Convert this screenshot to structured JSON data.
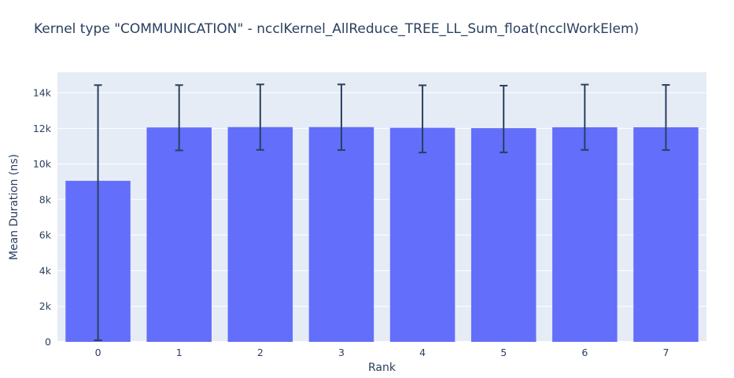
{
  "chart_data": {
    "type": "bar",
    "title": "Kernel type \"COMMUNICATION\" - ncclKernel_AllReduce_TREE_LL_Sum_float(ncclWorkElem)",
    "xlabel": "Rank",
    "ylabel": "Mean Duration (ns)",
    "categories": [
      "0",
      "1",
      "2",
      "3",
      "4",
      "5",
      "6",
      "7"
    ],
    "values": [
      9050,
      12050,
      12070,
      12070,
      12030,
      12010,
      12060,
      12060
    ],
    "error_high": [
      14430,
      14430,
      14470,
      14470,
      14420,
      14400,
      14460,
      14440
    ],
    "error_low": [
      90,
      10760,
      10790,
      10780,
      10640,
      10650,
      10790,
      10780
    ],
    "ylim": [
      0,
      15150
    ],
    "yticks": [
      0,
      2000,
      4000,
      6000,
      8000,
      10000,
      12000,
      14000
    ],
    "ytick_labels": [
      "0",
      "2k",
      "4k",
      "6k",
      "8k",
      "10k",
      "12k",
      "14k"
    ],
    "grid": true,
    "legend_position": "none",
    "bar_color": "#636efa",
    "error_color": "#2a3f5f",
    "plot_bg": "#e5ecf6",
    "grid_color": "#ffffff",
    "text_color": "#2a3f5f"
  }
}
